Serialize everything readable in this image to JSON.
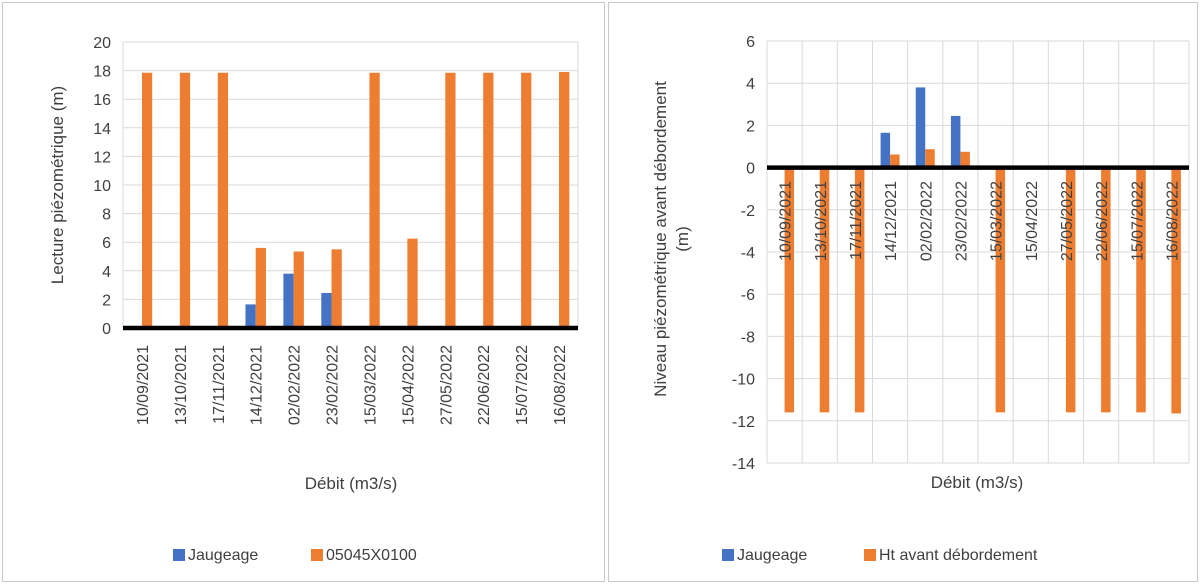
{
  "chart_data": [
    {
      "type": "bar",
      "categories": [
        "10/09/2021",
        "13/10/2021",
        "17/11/2021",
        "14/12/2021",
        "02/02/2022",
        "23/02/2022",
        "15/03/2022",
        "15/04/2022",
        "27/05/2022",
        "22/06/2022",
        "15/07/2022",
        "16/08/2022"
      ],
      "series": [
        {
          "name": "Jaugeage",
          "color": "#4472C4",
          "values": [
            0,
            0,
            0,
            1.65,
            3.8,
            2.45,
            0,
            0,
            0,
            0,
            0,
            0
          ]
        },
        {
          "name": "05045X0100",
          "color": "#ED7D31",
          "values": [
            17.85,
            17.85,
            17.85,
            5.6,
            5.35,
            5.5,
            17.85,
            6.25,
            17.85,
            17.85,
            17.85,
            17.9
          ]
        }
      ],
      "xlabel": "Débit (m3/s)",
      "ylabel": "Lecture piézométrique (m)",
      "ylim": [
        0,
        20
      ],
      "yticks": [
        0,
        2,
        4,
        6,
        8,
        10,
        12,
        14,
        16,
        18,
        20
      ],
      "grid": true,
      "legend": "bottom"
    },
    {
      "type": "bar",
      "categories": [
        "10/09/2021",
        "13/10/2021",
        "17/11/2021",
        "14/12/2021",
        "02/02/2022",
        "23/02/2022",
        "15/03/2022",
        "15/04/2022",
        "27/05/2022",
        "22/06/2022",
        "15/07/2022",
        "16/08/2022"
      ],
      "series": [
        {
          "name": "Jaugeage",
          "color": "#4472C4",
          "values": [
            0,
            0,
            0,
            1.65,
            3.8,
            2.45,
            0,
            0,
            0,
            0,
            0,
            0
          ]
        },
        {
          "name": "Ht avant débordement",
          "color": "#ED7D31",
          "values": [
            -11.6,
            -11.6,
            -11.6,
            0.62,
            0.87,
            0.75,
            -11.6,
            0,
            -11.6,
            -11.6,
            -11.6,
            -11.65
          ]
        }
      ],
      "xlabel": "Débit (m3/s)",
      "ylabel": "Niveau piézométrique avant débordement (m)",
      "ylim": [
        -14,
        6
      ],
      "yticks": [
        -14,
        -12,
        -10,
        -8,
        -6,
        -4,
        -2,
        0,
        2,
        4,
        6
      ],
      "grid": true,
      "legend": "bottom"
    }
  ]
}
